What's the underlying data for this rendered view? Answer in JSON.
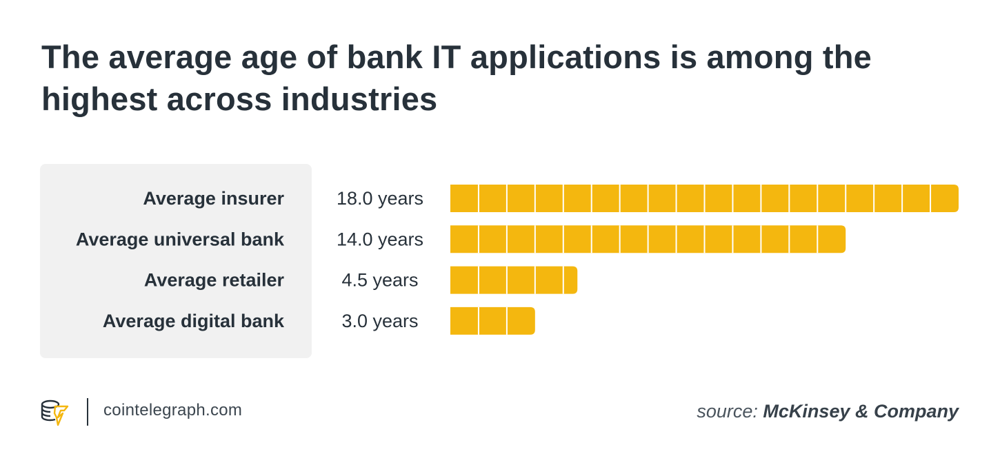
{
  "title": "The average age of bank IT applications is among the highest across industries",
  "colors": {
    "bar": "#f4b70f",
    "segment_divider": "#ffffff",
    "label_panel": "#f1f1f1",
    "text": "#27313a"
  },
  "chart_data": {
    "type": "bar",
    "orientation": "horizontal",
    "categories": [
      "Average insurer",
      "Average universal bank",
      "Average retailer",
      "Average digital bank"
    ],
    "values": [
      18.0,
      14.0,
      4.5,
      3.0
    ],
    "value_labels": [
      "18.0 years",
      "14.0 years",
      "4.5 years",
      "3.0 years"
    ],
    "unit": "years",
    "xlim": [
      0,
      18
    ],
    "segmented_by": 1,
    "grid": false,
    "legend": "none"
  },
  "footer": {
    "site": "cointelegraph.com",
    "source_prefix": "source:",
    "source_org": "McKinsey & Company",
    "logo_icon": "cointelegraph-logo-icon"
  }
}
